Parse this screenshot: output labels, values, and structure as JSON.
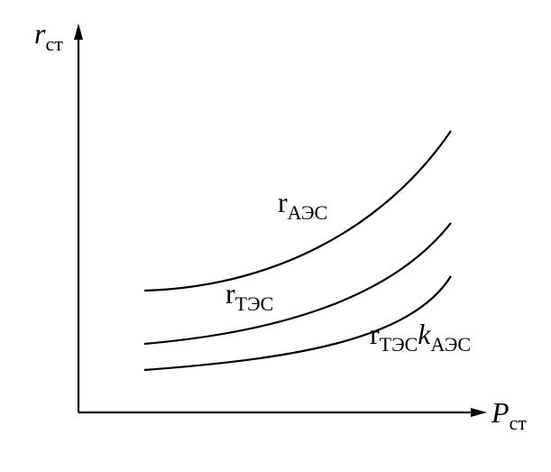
{
  "axes": {
    "y": {
      "symbol": "r",
      "subscript": "ст"
    },
    "x": {
      "symbol": "P",
      "subscript": "ст"
    }
  },
  "curves": [
    {
      "symbol": "r",
      "subscript": "АЭС"
    },
    {
      "symbol": "r",
      "subscript": "ТЭС"
    },
    {
      "symbol": "r",
      "subscript": "ТЭС",
      "factor": "k",
      "factor_subscript": "АЭС"
    }
  ]
}
